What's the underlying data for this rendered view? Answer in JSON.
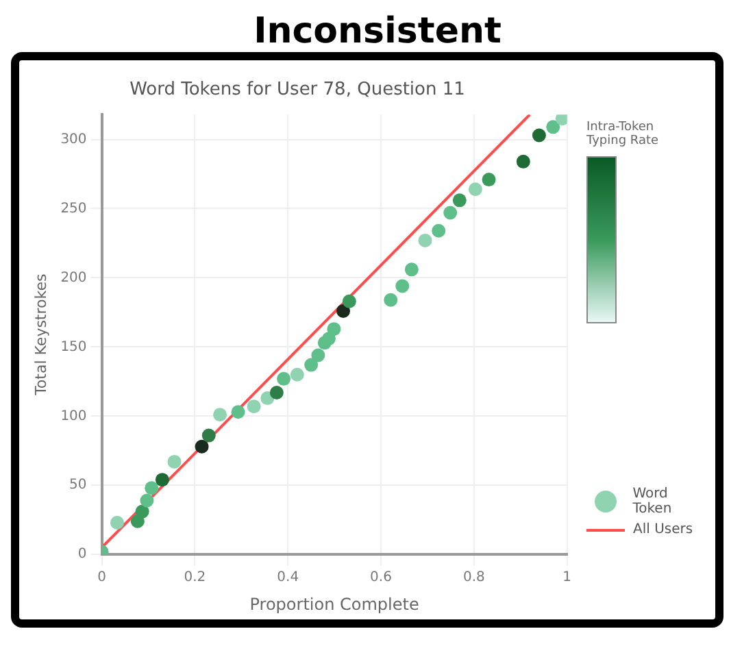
{
  "chart_data": {
    "type": "scatter",
    "title": "Word Tokens for User 78, Question 11",
    "xlabel": "Proportion Complete",
    "ylabel": "Total Keystrokes",
    "clabel": "Intra-Token Typing Rate",
    "annotations": [
      "Inconsistent"
    ],
    "xlim": [
      0,
      1
    ],
    "ylim": [
      0,
      318
    ],
    "xticks": [
      0,
      0.2,
      0.4,
      0.6,
      0.8,
      1
    ],
    "yticks": [
      0,
      50,
      100,
      150,
      200,
      250,
      300
    ],
    "grid": true,
    "legend": "right",
    "series": [
      {
        "name": "Word Token",
        "marker": "circle",
        "color": "#8fd3b0",
        "x": [
          0.0,
          0.033,
          0.077,
          0.087,
          0.097,
          0.107,
          0.13,
          0.156,
          0.215,
          0.23,
          0.254,
          0.293,
          0.327,
          0.356,
          0.376,
          0.391,
          0.42,
          0.45,
          0.465,
          0.479,
          0.488,
          0.499,
          0.519,
          0.532,
          0.621,
          0.646,
          0.666,
          0.695,
          0.724,
          0.749,
          0.769,
          0.803,
          0.832,
          0.906,
          0.94,
          0.97,
          0.99
        ],
        "values": [
          2,
          23,
          24,
          31,
          39,
          48,
          54,
          67,
          78,
          86,
          101,
          103,
          107,
          113,
          117,
          127,
          130,
          137,
          144,
          153,
          156,
          163,
          176,
          183,
          184,
          194,
          206,
          227,
          234,
          247,
          256,
          264,
          271,
          284,
          303,
          309,
          315
        ],
        "colors": [
          "#5fbf8a",
          "#8fd3b0",
          "#3a9a5c",
          "#3a9a5c",
          "#5fbf8a",
          "#5fbf8a",
          "#1e6b35",
          "#8fd3b0",
          "#1a2a1e",
          "#2f7d46",
          "#8fd3b0",
          "#5fbf8a",
          "#8fd3b0",
          "#8fd3b0",
          "#2f7d46",
          "#5fbf8a",
          "#8fd3b0",
          "#5fbf8a",
          "#5fbf8a",
          "#5fbf8a",
          "#5fbf8a",
          "#5fbf8a",
          "#1a2a1e",
          "#3a9a5c",
          "#5fbf8a",
          "#5fbf8a",
          "#5fbf8a",
          "#8fd3b0",
          "#5fbf8a",
          "#5fbf8a",
          "#3a9a5c",
          "#8fd3b0",
          "#3a9a5c",
          "#1e6b35",
          "#1e6b35",
          "#5fbf8a",
          "#8fd3b0"
        ]
      },
      {
        "name": "All Users",
        "type": "line",
        "color": "#ff4d4d",
        "x": [
          0,
          0.92
        ],
        "values": [
          5,
          318
        ]
      }
    ]
  }
}
